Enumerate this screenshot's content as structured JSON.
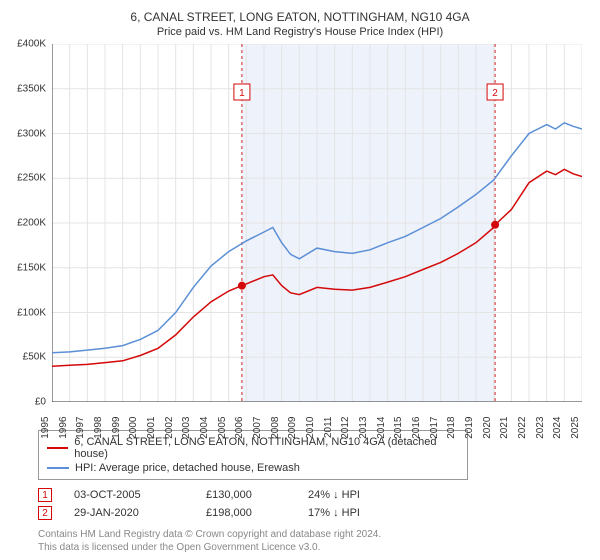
{
  "chart": {
    "title": "6, CANAL STREET, LONG EATON, NOTTINGHAM, NG10 4GA",
    "subtitle": "Price paid vs. HM Land Registry's House Price Index (HPI)",
    "title_fontsize": 12,
    "subtitle_fontsize": 11,
    "background_color": "#ffffff",
    "grid_color": "#e4e4e4",
    "axis_color": "#333333",
    "label_fontsize": 10,
    "ylim": [
      0,
      400000
    ],
    "ytick_step": 50000,
    "ytick_labels": [
      "£0",
      "£50K",
      "£100K",
      "£150K",
      "£200K",
      "£250K",
      "£300K",
      "£350K",
      "£400K"
    ],
    "xlim": [
      1995,
      2025
    ],
    "xtick_step": 1,
    "xtick_labels": [
      "1995",
      "1996",
      "1997",
      "1998",
      "1999",
      "2000",
      "2001",
      "2002",
      "2003",
      "2004",
      "2005",
      "2006",
      "2007",
      "2008",
      "2009",
      "2010",
      "2011",
      "2012",
      "2013",
      "2014",
      "2015",
      "2016",
      "2017",
      "2018",
      "2019",
      "2020",
      "2021",
      "2022",
      "2023",
      "2024",
      "2025"
    ],
    "shade_band": {
      "from": 2005.75,
      "to": 2020.08,
      "color": "#eef2fb"
    },
    "reference_lines": [
      {
        "x": 2005.75,
        "color": "#cc2222",
        "dash": "3,3"
      },
      {
        "x": 2020.08,
        "color": "#cc2222",
        "dash": "3,3"
      }
    ],
    "series": [
      {
        "id": "property",
        "color": "#d40808",
        "line_width": 1.5,
        "legend_label": "6, CANAL STREET, LONG EATON, NOTTINGHAM, NG10 4GA (detached house)",
        "data": [
          [
            1995,
            40000
          ],
          [
            1996,
            41000
          ],
          [
            1997,
            42000
          ],
          [
            1998,
            44000
          ],
          [
            1999,
            46000
          ],
          [
            2000,
            52000
          ],
          [
            2001,
            60000
          ],
          [
            2002,
            75000
          ],
          [
            2003,
            95000
          ],
          [
            2004,
            112000
          ],
          [
            2005,
            124000
          ],
          [
            2005.75,
            130000
          ],
          [
            2006,
            132000
          ],
          [
            2007,
            140000
          ],
          [
            2007.5,
            142000
          ],
          [
            2008,
            130000
          ],
          [
            2008.5,
            122000
          ],
          [
            2009,
            120000
          ],
          [
            2010,
            128000
          ],
          [
            2011,
            126000
          ],
          [
            2012,
            125000
          ],
          [
            2013,
            128000
          ],
          [
            2014,
            134000
          ],
          [
            2015,
            140000
          ],
          [
            2016,
            148000
          ],
          [
            2017,
            156000
          ],
          [
            2018,
            166000
          ],
          [
            2019,
            178000
          ],
          [
            2020,
            195000
          ],
          [
            2020.08,
            198000
          ],
          [
            2021,
            215000
          ],
          [
            2022,
            245000
          ],
          [
            2023,
            258000
          ],
          [
            2023.5,
            254000
          ],
          [
            2024,
            260000
          ],
          [
            2024.5,
            255000
          ],
          [
            2025,
            252000
          ]
        ]
      },
      {
        "id": "hpi",
        "color": "#5b8fd6",
        "line_width": 1.5,
        "legend_label": "HPI: Average price, detached house, Erewash",
        "data": [
          [
            1995,
            55000
          ],
          [
            1996,
            56000
          ],
          [
            1997,
            58000
          ],
          [
            1998,
            60000
          ],
          [
            1999,
            63000
          ],
          [
            2000,
            70000
          ],
          [
            2001,
            80000
          ],
          [
            2002,
            100000
          ],
          [
            2003,
            128000
          ],
          [
            2004,
            152000
          ],
          [
            2005,
            168000
          ],
          [
            2006,
            180000
          ],
          [
            2007,
            190000
          ],
          [
            2007.5,
            195000
          ],
          [
            2008,
            178000
          ],
          [
            2008.5,
            165000
          ],
          [
            2009,
            160000
          ],
          [
            2010,
            172000
          ],
          [
            2011,
            168000
          ],
          [
            2012,
            166000
          ],
          [
            2013,
            170000
          ],
          [
            2014,
            178000
          ],
          [
            2015,
            185000
          ],
          [
            2016,
            195000
          ],
          [
            2017,
            205000
          ],
          [
            2018,
            218000
          ],
          [
            2019,
            232000
          ],
          [
            2020,
            248000
          ],
          [
            2021,
            275000
          ],
          [
            2022,
            300000
          ],
          [
            2023,
            310000
          ],
          [
            2023.5,
            305000
          ],
          [
            2024,
            312000
          ],
          [
            2024.5,
            308000
          ],
          [
            2025,
            305000
          ]
        ]
      }
    ],
    "sale_markers": [
      {
        "n": "1",
        "x": 2005.75,
        "y": 130000,
        "color": "#d40808"
      },
      {
        "n": "2",
        "x": 2020.08,
        "y": 198000,
        "color": "#d40808"
      }
    ],
    "sale_box_labels": [
      {
        "n": "1",
        "x": 2005.75,
        "label_y_offset": -28
      },
      {
        "n": "2",
        "x": 2020.08,
        "label_y_offset": -28
      }
    ]
  },
  "sales": [
    {
      "n": "1",
      "date": "03-OCT-2005",
      "price": "£130,000",
      "diff": "24% ↓ HPI"
    },
    {
      "n": "2",
      "date": "29-JAN-2020",
      "price": "£198,000",
      "diff": "17% ↓ HPI"
    }
  ],
  "footer": {
    "line1": "Contains HM Land Registry data © Crown copyright and database right 2024.",
    "line2": "This data is licensed under the Open Government Licence v3.0."
  }
}
